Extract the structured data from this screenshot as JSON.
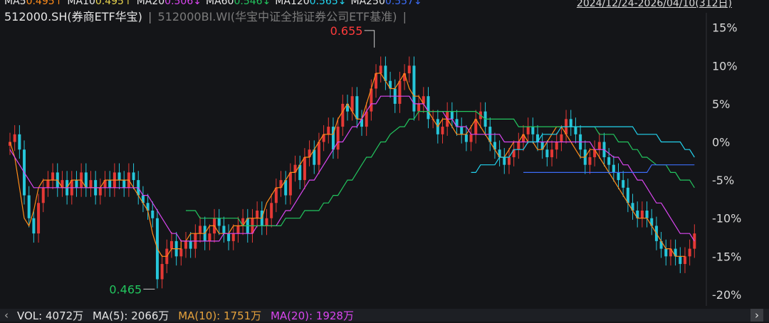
{
  "header": {
    "ma_items": [
      {
        "label": "MA5",
        "value": "0.495↑",
        "color": "#ff8c1a"
      },
      {
        "label": "MA10",
        "value": "0.495↑",
        "color": "#e8d44d"
      },
      {
        "label": "MA20",
        "value": "0.506↓",
        "color": "#d946ef"
      },
      {
        "label": "MA60",
        "value": "0.546↓",
        "color": "#22c55e"
      },
      {
        "label": "MA120",
        "value": "0.565↓",
        "color": "#22d3ee"
      },
      {
        "label": "MA250",
        "value": "0.557↓",
        "color": "#3b6cf6"
      }
    ],
    "date_range": "2024/12/24-2026/04/10(312日)"
  },
  "legend": {
    "symbol": "512000.SH(券商ETF华宝)",
    "separator": "|",
    "benchmark": "512000BI.WI(华宝中证全指证券公司ETF基准)",
    "separator2": "|"
  },
  "volume": {
    "text": "VOL: 4072万",
    "ma5": "MA(5): 2066万",
    "ma10": "MA(10): 1751万",
    "ma20": "MA(20): 1928万",
    "left_icon": "chevron-left-icon",
    "right_icon": "chevron-right-icon"
  },
  "chart_data": {
    "type": "candlestick",
    "y_axis": {
      "ticks": [
        "15%",
        "10%",
        "5%",
        "0%",
        "-5%",
        "-10%",
        "-15%",
        "-20%"
      ],
      "tick_values": [
        15,
        10,
        5,
        0,
        -5,
        -10,
        -15,
        -20
      ],
      "range": [
        -21.5,
        16
      ]
    },
    "annotations": [
      {
        "text": "0.655",
        "color": "#ff3b3b",
        "x_frac": 0.528,
        "value_pct": 12
      },
      {
        "text": "0.465",
        "color": "#22c55e",
        "x_frac": 0.218,
        "value_pct": -19.3
      }
    ],
    "colors": {
      "up": "#e53935",
      "down": "#26c6da",
      "grid": "#2a2c31"
    },
    "candle_closes_pct": [
      0,
      1,
      -1,
      -7,
      -10,
      -12,
      -8,
      -6,
      -5,
      -4,
      -6,
      -5,
      -7,
      -5,
      -6,
      -4,
      -6,
      -5,
      -7,
      -6,
      -5,
      -6,
      -4,
      -5,
      -6,
      -4,
      -5,
      -7,
      -8,
      -9,
      -10,
      -18,
      -16,
      -14,
      -13,
      -15,
      -14,
      -13,
      -14,
      -12,
      -11,
      -13,
      -12,
      -10,
      -11,
      -12,
      -13,
      -12,
      -11,
      -10,
      -12,
      -10,
      -9,
      -11,
      -10,
      -8,
      -6,
      -5,
      -7,
      -4,
      -3,
      -5,
      -2,
      -1,
      -3,
      0,
      1,
      2,
      -1,
      2,
      5,
      4,
      6,
      3,
      2,
      4,
      7,
      9,
      10,
      8,
      7,
      5,
      8,
      9,
      10,
      4,
      5,
      6,
      3,
      3,
      1,
      2,
      4,
      3,
      2,
      1,
      0,
      1,
      3,
      4,
      2,
      0,
      -1,
      -2,
      -3,
      -2,
      -1,
      0,
      1,
      2,
      1,
      0,
      -1,
      -2,
      -1,
      0,
      1,
      3,
      2,
      1,
      -1,
      -3,
      -2,
      -1,
      0,
      -2,
      -3,
      -4,
      -5,
      -6,
      -8,
      -9,
      -10,
      -9,
      -10,
      -11,
      -13,
      -14,
      -15,
      -14,
      -15,
      -16,
      -15,
      -14,
      -12
    ],
    "ma_series": [
      {
        "label": "MA5",
        "color": "#ff8c1a",
        "values_pct": [
          0,
          -2,
          -6,
          -10,
          -11,
          -9,
          -6,
          -5,
          -5,
          -5,
          -5,
          -6,
          -6,
          -5,
          -5,
          -5,
          -6,
          -6,
          -6,
          -6,
          -5,
          -5,
          -5,
          -5,
          -5,
          -5,
          -6,
          -7,
          -8,
          -9,
          -12,
          -14,
          -15,
          -15,
          -14,
          -14,
          -14,
          -13,
          -13,
          -12,
          -12,
          -12,
          -12,
          -11,
          -11,
          -12,
          -12,
          -12,
          -11,
          -11,
          -11,
          -10,
          -10,
          -10,
          -10,
          -8,
          -7,
          -6,
          -6,
          -5,
          -4,
          -4,
          -3,
          -2,
          -2,
          -1,
          0,
          1,
          1,
          1,
          3,
          4,
          5,
          4,
          3,
          3,
          5,
          7,
          9,
          9,
          8,
          7,
          7,
          8,
          9,
          7,
          6,
          6,
          5,
          4,
          3,
          2,
          3,
          3,
          2,
          1,
          1,
          1,
          2,
          3,
          2,
          1,
          0,
          -1,
          -2,
          -2,
          -1,
          0,
          0,
          1,
          1,
          0,
          0,
          -1,
          -1,
          0,
          1,
          2,
          2,
          1,
          0,
          -1,
          -2,
          -2,
          -1,
          -1,
          -2,
          -3,
          -4,
          -5,
          -6,
          -7,
          -8,
          -9,
          -10,
          -10,
          -10,
          -11,
          -12,
          -13,
          -14,
          -14,
          -15,
          -15,
          -15,
          -14,
          -13
        ]
      },
      {
        "label": "MA20",
        "color": "#d946ef",
        "values_pct": [
          -1,
          -2,
          -3,
          -4,
          -5,
          -6,
          -6,
          -6,
          -6,
          -6,
          -6,
          -6,
          -6,
          -6,
          -6,
          -6,
          -6,
          -6,
          -6,
          -6,
          -6,
          -6,
          -6,
          -6,
          -6,
          -6,
          -6,
          -7,
          -7,
          -8,
          -9,
          -10,
          -11,
          -12,
          -12,
          -13,
          -13,
          -13,
          -13,
          -13,
          -13,
          -13,
          -13,
          -13,
          -12,
          -12,
          -12,
          -12,
          -12,
          -12,
          -12,
          -11,
          -11,
          -11,
          -11,
          -10,
          -9,
          -9,
          -8,
          -7,
          -6,
          -5,
          -5,
          -4,
          -3,
          -2,
          -1,
          0,
          0,
          1,
          2,
          2,
          3,
          4,
          5,
          5,
          6,
          6,
          6,
          6,
          6,
          6,
          6,
          5,
          5,
          5,
          4,
          4,
          4,
          3,
          3,
          2,
          2,
          2,
          1,
          1,
          1,
          1,
          1,
          1,
          1,
          0,
          0,
          0,
          0,
          0,
          0,
          0,
          0,
          0,
          0,
          0,
          0,
          0,
          0,
          0,
          0,
          0,
          0,
          0,
          -1,
          -1,
          -1,
          -2,
          -2,
          -3,
          -3,
          -4,
          -5,
          -5,
          -6,
          -7,
          -8,
          -8,
          -9,
          -10,
          -11,
          -12,
          -12,
          -12,
          -13
        ]
      },
      {
        "label": "MA60",
        "color": "#22c55e",
        "values_pct": [
          null,
          null,
          null,
          null,
          null,
          null,
          null,
          null,
          null,
          null,
          null,
          null,
          null,
          null,
          null,
          null,
          null,
          null,
          null,
          null,
          null,
          null,
          null,
          null,
          null,
          null,
          null,
          null,
          null,
          null,
          null,
          null,
          null,
          null,
          null,
          -9,
          -9,
          -9,
          -10,
          -10,
          -10,
          -10,
          -10,
          -10,
          -10,
          -10,
          -11,
          -11,
          -11,
          -11,
          -11,
          -11,
          -11,
          -11,
          -11,
          -10,
          -10,
          -10,
          -10,
          -9,
          -9,
          -9,
          -8,
          -8,
          -7,
          -7,
          -6,
          -5,
          -5,
          -4,
          -3,
          -2,
          -2,
          -1,
          0,
          0,
          1,
          2,
          2,
          3,
          3,
          4,
          4,
          4,
          4,
          4,
          4,
          4,
          4,
          4,
          4,
          4,
          4,
          4,
          3,
          3,
          3,
          3,
          3,
          3,
          3,
          2,
          2,
          2,
          2,
          2,
          2,
          2,
          2,
          2,
          2,
          2,
          2,
          2,
          2,
          2,
          2,
          1,
          1,
          1,
          1,
          0,
          0,
          0,
          -1,
          -1,
          -2,
          -2,
          -3,
          -3,
          -3,
          -4,
          -4,
          -5,
          -5,
          -5,
          -6
        ]
      },
      {
        "label": "MA120",
        "color": "#22d3ee",
        "values_pct": [
          null,
          null,
          null,
          null,
          null,
          null,
          null,
          null,
          null,
          null,
          null,
          null,
          null,
          null,
          null,
          null,
          null,
          null,
          null,
          null,
          null,
          null,
          null,
          null,
          null,
          null,
          null,
          null,
          null,
          null,
          null,
          null,
          null,
          null,
          null,
          null,
          null,
          null,
          null,
          null,
          null,
          null,
          null,
          null,
          null,
          null,
          null,
          null,
          null,
          null,
          null,
          null,
          null,
          null,
          null,
          null,
          null,
          null,
          null,
          null,
          null,
          null,
          null,
          null,
          null,
          null,
          null,
          null,
          null,
          null,
          null,
          null,
          null,
          null,
          null,
          null,
          null,
          null,
          null,
          null,
          null,
          null,
          null,
          null,
          null,
          null,
          null,
          null,
          null,
          null,
          null,
          null,
          null,
          null,
          -4,
          -4,
          -3,
          -3,
          -3,
          -2,
          -2,
          -2,
          -1,
          -1,
          -1,
          0,
          0,
          0,
          1,
          1,
          1,
          1,
          2,
          2,
          2,
          2,
          2,
          2,
          2,
          2,
          2,
          2,
          2,
          2,
          2,
          2,
          2,
          1,
          1,
          1,
          1,
          1,
          0,
          0,
          0,
          0,
          0,
          -1,
          -1,
          -2
        ]
      },
      {
        "label": "MA250",
        "color": "#3b6cf6",
        "values_pct": [
          null,
          null,
          null,
          null,
          null,
          null,
          null,
          null,
          null,
          null,
          null,
          null,
          null,
          null,
          null,
          null,
          null,
          null,
          null,
          null,
          null,
          null,
          null,
          null,
          null,
          null,
          null,
          null,
          null,
          null,
          null,
          null,
          null,
          null,
          null,
          null,
          null,
          null,
          null,
          null,
          null,
          null,
          null,
          null,
          null,
          null,
          null,
          null,
          null,
          null,
          null,
          null,
          null,
          null,
          null,
          null,
          null,
          null,
          null,
          null,
          null,
          null,
          null,
          null,
          null,
          null,
          null,
          null,
          null,
          null,
          null,
          null,
          null,
          null,
          null,
          null,
          null,
          null,
          null,
          null,
          null,
          null,
          null,
          null,
          null,
          null,
          null,
          null,
          null,
          null,
          null,
          null,
          null,
          null,
          null,
          null,
          null,
          null,
          null,
          null,
          null,
          null,
          null,
          null,
          -4,
          -4,
          -4,
          -4,
          -4,
          -4,
          -4,
          -4,
          -4,
          -4,
          -4,
          -4,
          -4,
          -4,
          -4,
          -4,
          -4,
          -4,
          -4,
          -4,
          -4,
          -4,
          -4,
          -4,
          -4,
          -4,
          -3,
          -3,
          -3,
          -3,
          -3,
          -3,
          -3,
          -3,
          -3,
          -3
        ]
      }
    ]
  }
}
